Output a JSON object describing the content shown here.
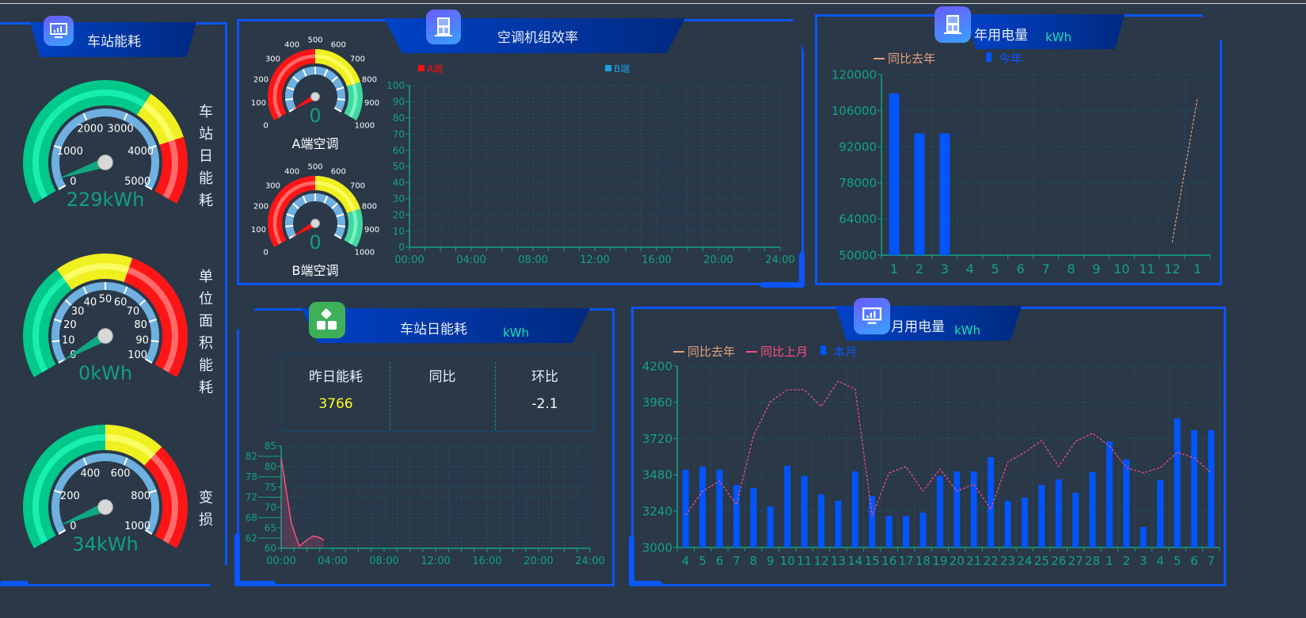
{
  "colors": {
    "accent": "#0a56ff",
    "axis": "#14a37f",
    "bar": "#0055ff",
    "line_pink": "#ff4f7f",
    "line_orange": "#e6a07a",
    "green": "#00e0a0",
    "yellow": "#ffff33",
    "red": "#ff2020"
  },
  "left_panel": {
    "title": "车站能耗",
    "icon": "monitor-chart-icon",
    "gauges": [
      {
        "label": "车站日能耗",
        "value": 229,
        "value_text": "229kWh",
        "min": 0,
        "max": 5000,
        "ticks": [
          "0",
          "1000",
          "2000",
          "3000",
          "4000",
          "5000"
        ],
        "bands": [
          [
            0.64,
            "green"
          ],
          [
            0.8,
            "yellow"
          ],
          [
            1,
            "red"
          ]
        ]
      },
      {
        "label": "单位面积能耗",
        "value": 0,
        "value_text": "0kWh",
        "min": 0,
        "max": 100,
        "ticks": [
          "0",
          "10",
          "20",
          "30",
          "40",
          "50",
          "60",
          "70",
          "80",
          "90",
          "100"
        ],
        "bands": [
          [
            0.35,
            "green"
          ],
          [
            0.58,
            "yellow"
          ],
          [
            1,
            "red"
          ]
        ]
      },
      {
        "label": "变损",
        "value": 34,
        "value_text": "34kWh",
        "min": 0,
        "max": 1000,
        "ticks": [
          "0",
          "200",
          "400",
          "600",
          "800",
          "1000"
        ],
        "bands": [
          [
            0.5,
            "green"
          ],
          [
            0.68,
            "yellow"
          ],
          [
            1,
            "red"
          ]
        ]
      }
    ]
  },
  "ac_panel": {
    "title": "空调机组效率",
    "icon": "cabinet-icon",
    "gauges": [
      {
        "label": "A端空调",
        "value": 0,
        "value_text": "0",
        "min": 0,
        "max": 1000,
        "ticks": [
          "0",
          "100",
          "200",
          "300",
          "400",
          "500",
          "600",
          "700",
          "800",
          "900",
          "1000"
        ],
        "bands": [
          [
            0.5,
            "red"
          ],
          [
            0.8,
            "yellow"
          ],
          [
            1,
            "green"
          ]
        ]
      },
      {
        "label": "B端空调",
        "value": 0,
        "value_text": "0",
        "min": 0,
        "max": 1000,
        "ticks": [
          "0",
          "100",
          "200",
          "300",
          "400",
          "500",
          "600",
          "700",
          "800",
          "900",
          "1000"
        ],
        "bands": [
          [
            0.5,
            "red"
          ],
          [
            0.8,
            "yellow"
          ],
          [
            1,
            "green"
          ]
        ]
      }
    ]
  },
  "daily_panel": {
    "title": "车站日能耗",
    "unit": "kWh",
    "icon": "grid-apps-icon",
    "stats": [
      {
        "label": "昨日能耗",
        "value": "3766"
      },
      {
        "label": "同比",
        "value": ""
      },
      {
        "label": "环比",
        "value": "-2.1"
      }
    ]
  },
  "year_panel": {
    "title": "年用电量",
    "unit": "kWh",
    "icon": "cabinet-icon"
  },
  "month_panel": {
    "title": "月用电量",
    "unit": "kWh",
    "icon": "monitor-chart-icon"
  },
  "chart_data": [
    {
      "id": "ac",
      "type": "line",
      "x_ticks": [
        "00:00",
        "04:00",
        "08:00",
        "12:00",
        "16:00",
        "20:00",
        "24:00"
      ],
      "ylim": [
        0,
        100
      ],
      "y_ticks": [
        "0",
        "10",
        "20",
        "30",
        "40",
        "50",
        "60",
        "70",
        "80",
        "90",
        "100"
      ],
      "grid": true,
      "series": [
        {
          "name": "A端",
          "color": "#ff1010",
          "values": []
        },
        {
          "name": "B端",
          "color": "#1aa0e0",
          "values": []
        }
      ]
    },
    {
      "id": "daily",
      "type": "area",
      "x_ticks": [
        "00:00",
        "04:00",
        "08:00",
        "12:00",
        "16:00",
        "20:00",
        "24:00"
      ],
      "xlim": [
        0,
        24
      ],
      "ylim": [
        60,
        85
      ],
      "y_ticks": [
        "60",
        "62",
        "65",
        "68",
        "70",
        "72",
        "75",
        "78",
        "80",
        "82",
        "85"
      ],
      "grid": true,
      "series": [
        {
          "color": "#ff4f7f",
          "x": [
            0,
            0.3,
            0.8,
            1.4,
            2.0,
            2.5,
            3.0,
            3.3
          ],
          "values": [
            82,
            76,
            66,
            60.5,
            62,
            63,
            62.6,
            62
          ]
        }
      ]
    },
    {
      "id": "year",
      "type": "bar+line",
      "categories": [
        "1",
        "2",
        "3",
        "4",
        "5",
        "6",
        "7",
        "8",
        "9",
        "10",
        "11",
        "12",
        "1"
      ],
      "ylim": [
        50000,
        120000
      ],
      "y_ticks": [
        "50000",
        "64000",
        "78000",
        "92000",
        "106000",
        "120000"
      ],
      "grid": true,
      "legend": [
        {
          "name": "同比去年",
          "kind": "line",
          "color": "#e6a07a"
        },
        {
          "name": "今年",
          "kind": "bar",
          "color": "#0055ff"
        }
      ],
      "series": [
        {
          "name": "今年",
          "kind": "bar",
          "values": [
            112600,
            97200,
            97200,
            null,
            null,
            null,
            null,
            null,
            null,
            null,
            null,
            null,
            null
          ]
        },
        {
          "name": "同比去年",
          "kind": "line",
          "color": "#e6a07a",
          "values": [
            null,
            null,
            null,
            null,
            null,
            null,
            null,
            null,
            null,
            null,
            null,
            55000,
            111000
          ]
        }
      ]
    },
    {
      "id": "month",
      "type": "bar+line",
      "categories": [
        "4",
        "5",
        "6",
        "7",
        "8",
        "9",
        "10",
        "11",
        "12",
        "13",
        "14",
        "15",
        "16",
        "17",
        "18",
        "19",
        "20",
        "21",
        "22",
        "23",
        "24",
        "25",
        "26",
        "27",
        "28",
        "1",
        "2",
        "3",
        "4",
        "5",
        "6",
        "7"
      ],
      "ylim": [
        3000,
        4200
      ],
      "y_ticks": [
        "3000",
        "3240",
        "3480",
        "3720",
        "3960",
        "4200"
      ],
      "grid": true,
      "legend": [
        {
          "name": "同比去年",
          "kind": "line",
          "color": "#e6a07a"
        },
        {
          "name": "同比上月",
          "kind": "line",
          "color": "#ff4f7f"
        },
        {
          "name": "本月",
          "kind": "bar",
          "color": "#0055ff"
        }
      ],
      "series": [
        {
          "name": "本月",
          "kind": "bar",
          "values": [
            3514,
            3535,
            3514,
            3414,
            3393,
            3272,
            3540,
            3472,
            3351,
            3309,
            3503,
            3341,
            3210,
            3210,
            3230,
            3472,
            3503,
            3503,
            3597,
            3309,
            3330,
            3414,
            3450,
            3362,
            3498,
            3702,
            3582,
            3136,
            3445,
            3854,
            3776,
            3776
          ]
        },
        {
          "name": "同比上月",
          "kind": "line",
          "color": "#ff4f7f",
          "values": [
            3215,
            3372,
            3440,
            3283,
            3739,
            3964,
            4043,
            4043,
            3933,
            4100,
            4048,
            3210,
            3493,
            3535,
            3372,
            3519,
            3372,
            3419,
            3252,
            3566,
            3629,
            3707,
            3535,
            3702,
            3755,
            3671,
            3529,
            3493,
            3529,
            3629,
            3592,
            3493
          ]
        }
      ]
    }
  ]
}
